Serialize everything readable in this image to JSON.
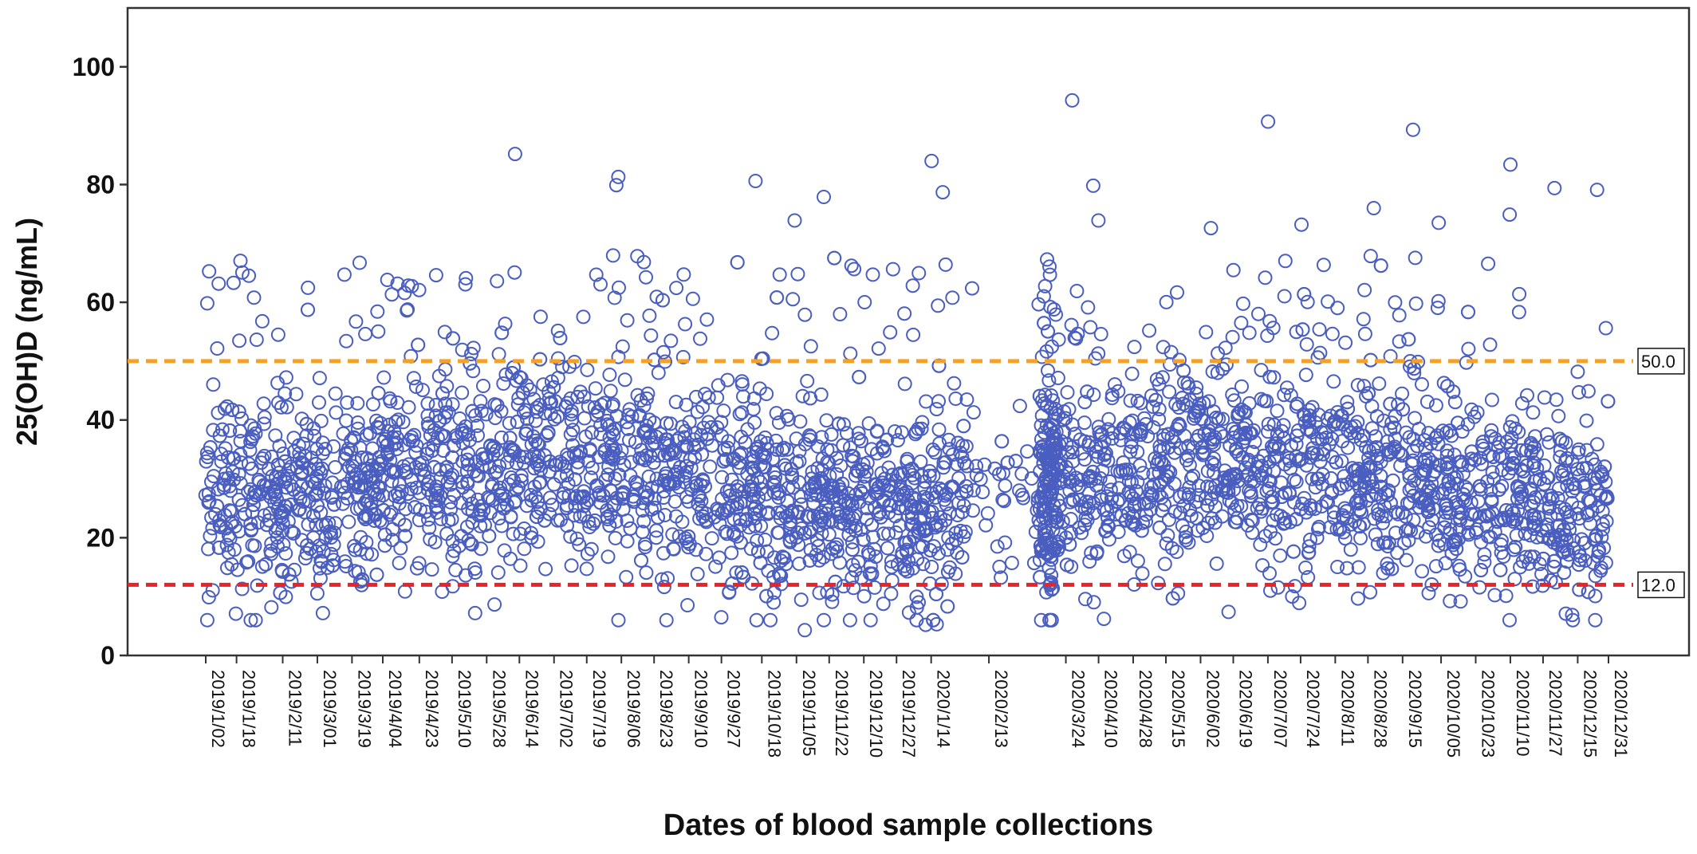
{
  "chart_data": {
    "type": "scatter",
    "title": "",
    "xlabel": "Dates of blood sample collections",
    "ylabel": "25(OH)D (ng/mL)",
    "ylim": [
      0,
      110
    ],
    "yticks": [
      0,
      20,
      40,
      60,
      80,
      100
    ],
    "xrange": [
      "2019/1/02",
      "2020/12/31"
    ],
    "xtick_labels": [
      "2019/1/02",
      "2019/1/18",
      "2019/2/11",
      "2019/3/01",
      "2019/3/19",
      "2019/4/04",
      "2019/4/23",
      "2019/5/10",
      "2019/5/28",
      "2019/6/14",
      "2019/7/02",
      "2019/7/19",
      "2019/8/06",
      "2019/8/23",
      "2019/9/10",
      "2019/9/27",
      "2019/10/18",
      "2019/11/05",
      "2019/11/22",
      "2019/12/10",
      "2019/12/27",
      "2020/1/14",
      "2020/2/13",
      "2020/3/24",
      "2020/4/10",
      "2020/4/28",
      "2020/5/15",
      "2020/6/02",
      "2020/6/19",
      "2020/7/07",
      "2020/7/24",
      "2020/8/11",
      "2020/8/28",
      "2020/9/15",
      "2020/10/05",
      "2020/10/23",
      "2020/11/10",
      "2020/11/27",
      "2020/12/15",
      "2020/12/31"
    ],
    "grid": false,
    "marker_color": "#4a5ec0",
    "reference_lines": [
      {
        "y": 50.0,
        "label": "50.0",
        "color": "#f5a027",
        "style": "dashed"
      },
      {
        "y": 12.0,
        "label": "12.0",
        "color": "#e8232a",
        "style": "dashed"
      }
    ],
    "notable_points": [
      {
        "x": "2020/3/24",
        "y": 94.3
      },
      {
        "x": "2020/7/07",
        "y": 90.7
      },
      {
        "x": "2020/9/15",
        "y": 89.3
      },
      {
        "x": "2019/6/14",
        "y": 85.2
      },
      {
        "x": "2020/1/14",
        "y": 84.0
      },
      {
        "x": "2020/11/10",
        "y": 83.4
      },
      {
        "x": "2019/8/06",
        "y": 81.3
      },
      {
        "x": "2019/10/18",
        "y": 80.6
      },
      {
        "x": "2019/8/06",
        "y": 79.9
      },
      {
        "x": "2020/4/10",
        "y": 79.8
      },
      {
        "x": "2020/11/27",
        "y": 79.4
      },
      {
        "x": "2020/12/31",
        "y": 79.1
      },
      {
        "x": "2020/1/14",
        "y": 78.7
      },
      {
        "x": "2019/11/22",
        "y": 77.9
      },
      {
        "x": "2020/8/28",
        "y": 76.0
      },
      {
        "x": "2020/11/10",
        "y": 74.9
      },
      {
        "x": "2019/11/05",
        "y": 73.9
      },
      {
        "x": "2020/4/10",
        "y": 73.9
      },
      {
        "x": "2020/10/05",
        "y": 73.5
      },
      {
        "x": "2020/7/24",
        "y": 73.2
      },
      {
        "x": "2020/6/02",
        "y": 72.6
      },
      {
        "x": "2019/4/04",
        "y": 63.8
      },
      {
        "x": "2019/3/19",
        "y": 64.7
      },
      {
        "x": "2019/1/18",
        "y": 63.3
      },
      {
        "x": "2019/5/28",
        "y": 63.6
      },
      {
        "x": "2019/12/10",
        "y": 64.7
      },
      {
        "x": "2019/11/05",
        "y": 4.3
      },
      {
        "x": "2020/1/14",
        "y": 5.2
      },
      {
        "x": "2020/1/14",
        "y": 5.3
      },
      {
        "x": "2020/12/15",
        "y": 7.1
      },
      {
        "x": "2019/3/01",
        "y": 7.2
      },
      {
        "x": "2019/1/18",
        "y": 7.1
      },
      {
        "x": "2019/5/28",
        "y": 7.2
      },
      {
        "x": "2020/6/19",
        "y": 7.4
      }
    ]
  },
  "reference_labels": {
    "upper": "50.0",
    "lower": "12.0"
  }
}
